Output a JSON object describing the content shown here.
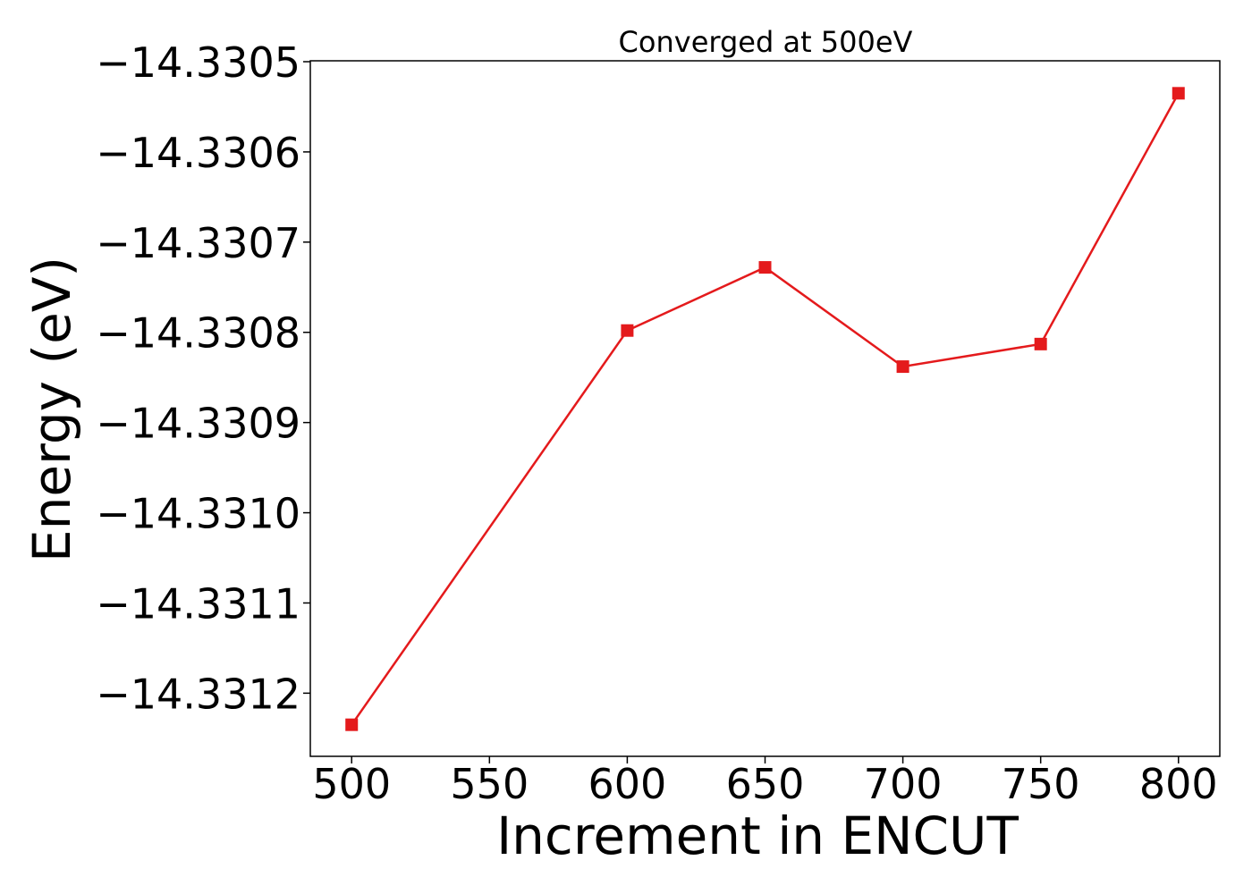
{
  "chart_data": {
    "type": "line",
    "title": "Converged at 500eV",
    "xlabel": "Increment in ENCUT",
    "ylabel": "Energy (eV)",
    "x": [
      500,
      600,
      650,
      700,
      750,
      800
    ],
    "series": [
      {
        "values": [
          -14.331235,
          -14.330798,
          -14.330728,
          -14.330838,
          -14.330813,
          -14.330535
        ],
        "color": "#e41a1c",
        "marker": "square"
      }
    ],
    "xticks": [
      500,
      550,
      600,
      650,
      700,
      750,
      800
    ],
    "xtick_labels": [
      "500",
      "550",
      "600",
      "650",
      "700",
      "750",
      "800"
    ],
    "yticks": [
      -14.3305,
      -14.3306,
      -14.3307,
      -14.3308,
      -14.3309,
      -14.331,
      -14.3311,
      -14.3312
    ],
    "ytick_labels": [
      "−14.3305",
      "−14.3306",
      "−14.3307",
      "−14.3308",
      "−14.3309",
      "−14.3310",
      "−14.3311",
      "−14.3312"
    ],
    "xlim": [
      485,
      815
    ],
    "ylim": [
      -14.33127,
      -14.330499
    ],
    "grid": false,
    "legend": "none"
  }
}
